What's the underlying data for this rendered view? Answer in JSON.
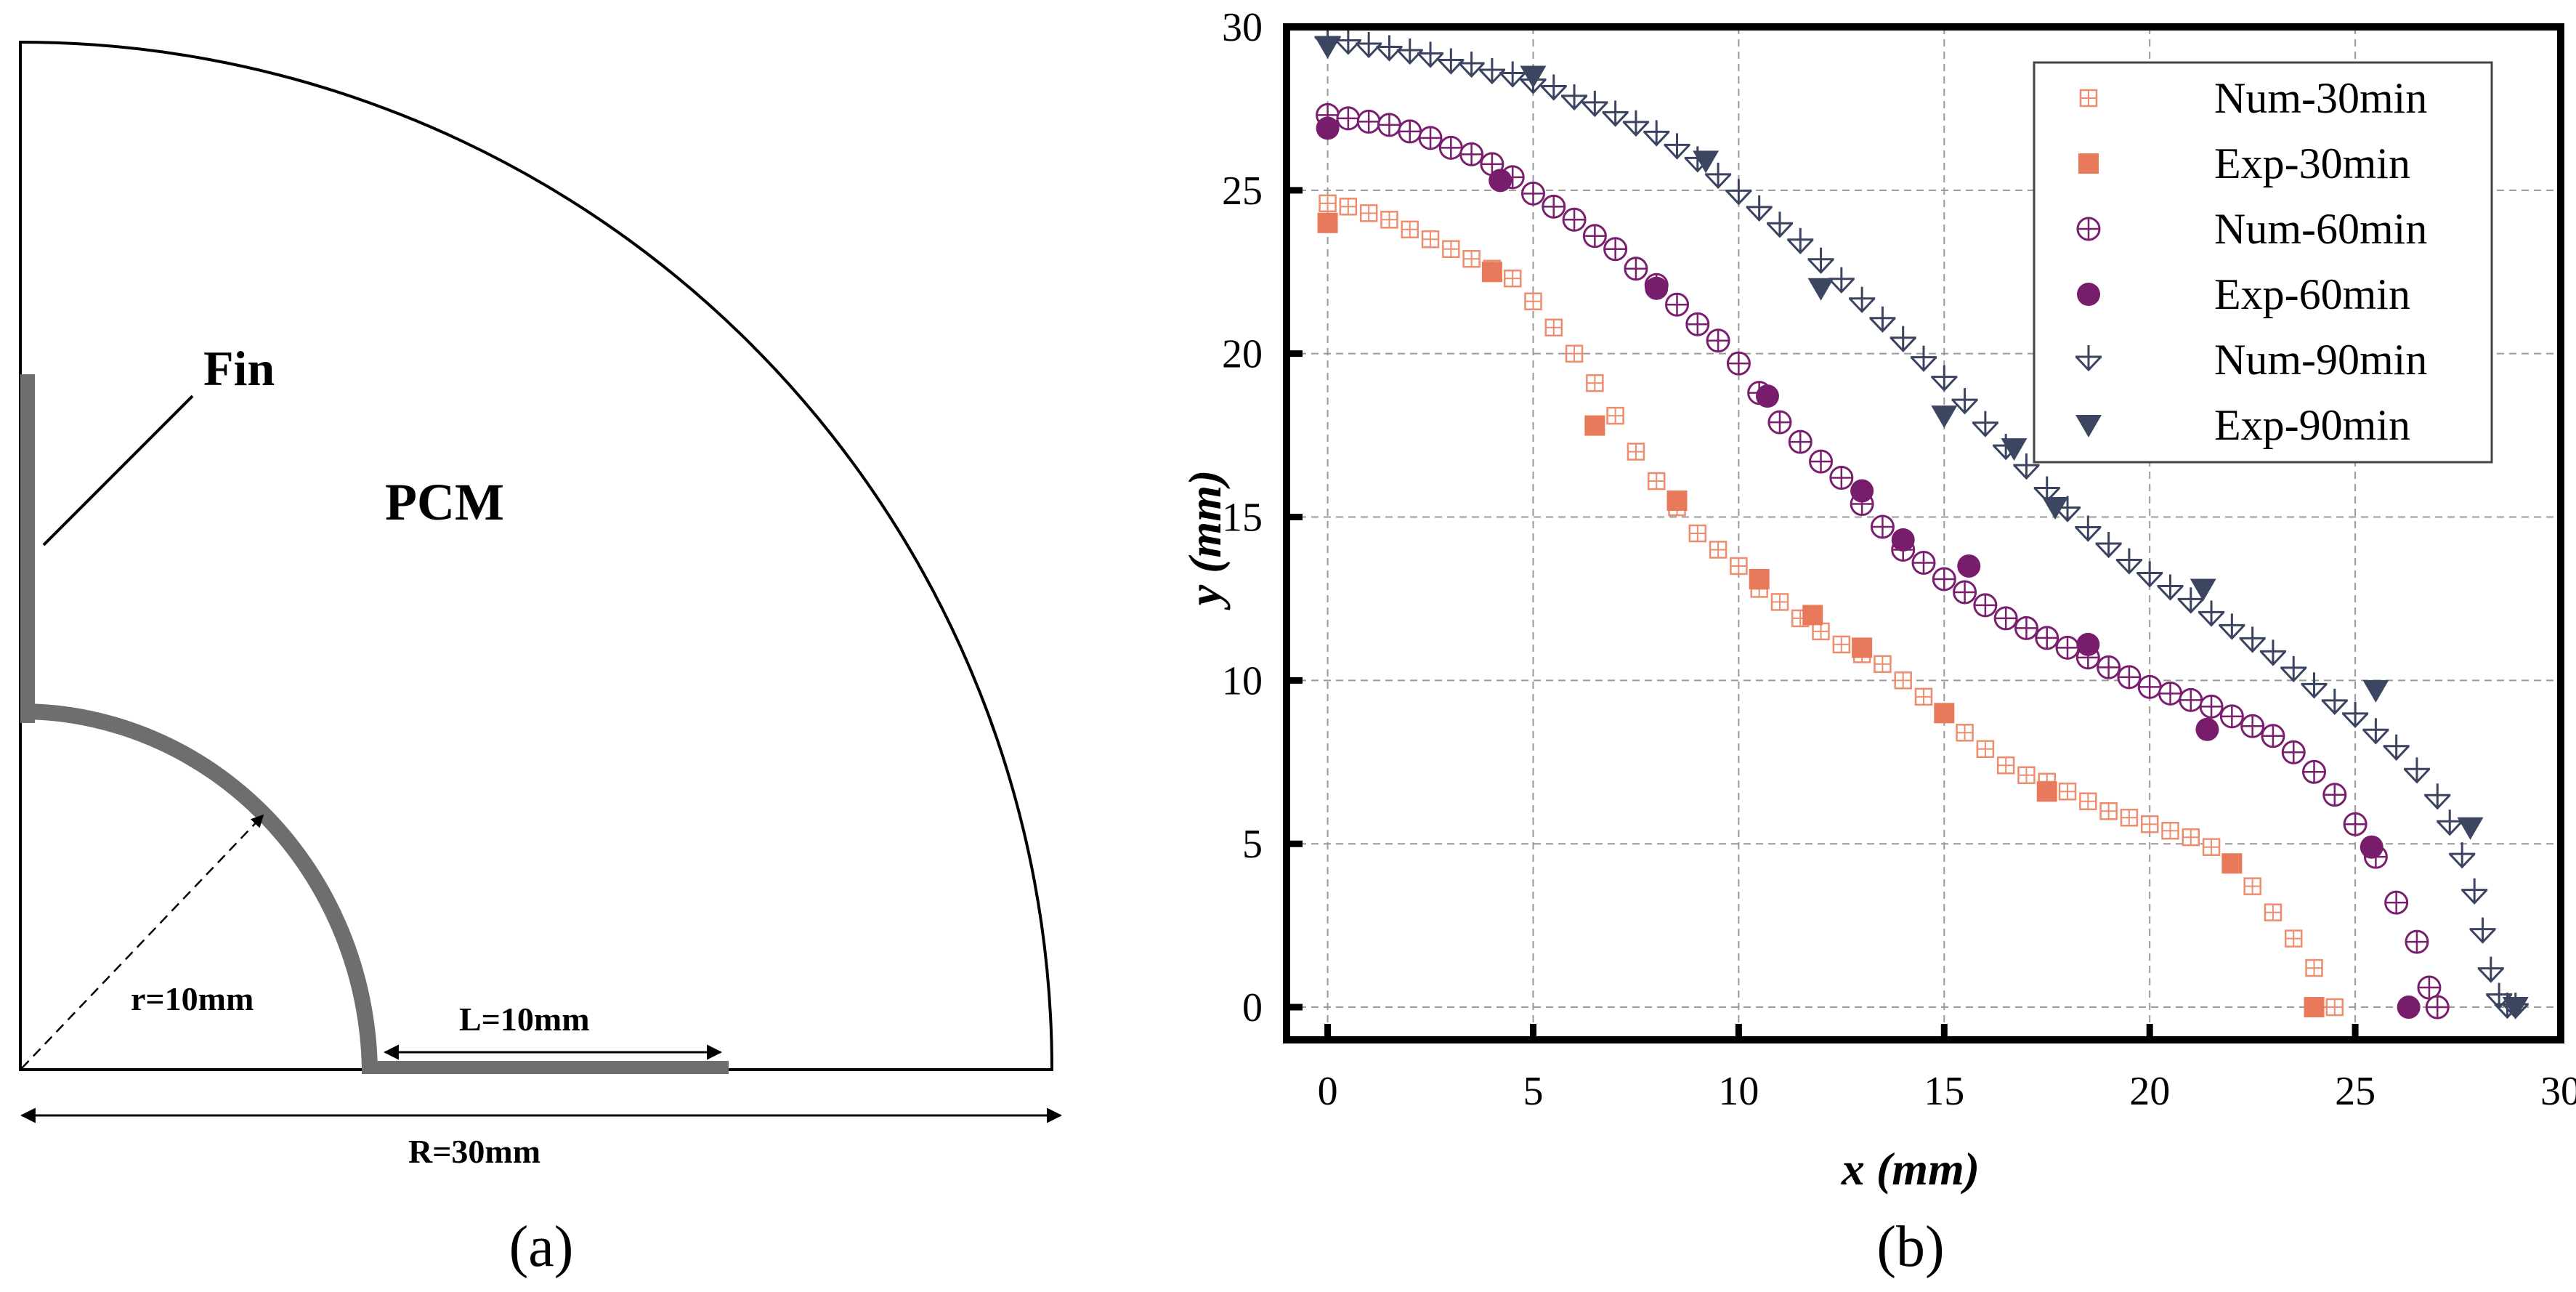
{
  "panel_a": {
    "caption": "(a)",
    "fin_label": "Fin",
    "pcm_label": "PCM",
    "inner_radius_label": "r=10mm",
    "fin_length_label": "L=10mm",
    "outer_radius_label": "R=30mm"
  },
  "panel_b": {
    "caption": "(b)"
  },
  "colors": {
    "num30": "#ee8d6e",
    "exp30": "#e8795a",
    "num60": "#7a1e6e",
    "exp60": "#781c6c",
    "num90": "#3a4460",
    "exp90": "#3c4660",
    "grid": "#999999",
    "fin": "#6e6e6e"
  },
  "chart_data": {
    "type": "scatter",
    "title": "",
    "xlabel": "x (mm)",
    "ylabel": "y (mm)",
    "xlim": [
      -1,
      30
    ],
    "ylim": [
      -1,
      30
    ],
    "x_ticks": [
      "0",
      "5",
      "10",
      "15",
      "20",
      "25",
      "30"
    ],
    "y_ticks": [
      "0",
      "5",
      "10",
      "15",
      "20",
      "25",
      "30"
    ],
    "grid": true,
    "legend_position": "top-right",
    "series": [
      {
        "name": "Num-30min",
        "marker": "square-cross",
        "x": [
          0,
          0.5,
          1,
          1.5,
          2,
          2.5,
          3,
          3.5,
          4,
          4.5,
          5,
          5.5,
          6,
          6.5,
          7,
          7.5,
          8,
          8.5,
          9,
          9.5,
          10,
          10.5,
          11,
          11.5,
          12,
          12.5,
          13,
          13.5,
          14,
          14.5,
          15,
          15.5,
          16,
          16.5,
          17,
          17.5,
          18,
          18.5,
          19,
          19.5,
          20,
          20.5,
          21,
          21.5,
          22,
          22.5,
          23,
          23.5,
          24,
          24.5
        ],
        "y": [
          24.6,
          24.5,
          24.3,
          24.1,
          23.8,
          23.5,
          23.2,
          22.9,
          22.6,
          22.3,
          21.6,
          20.8,
          20,
          19.1,
          18.1,
          17,
          16.1,
          15.3,
          14.5,
          14,
          13.5,
          12.8,
          12.4,
          11.9,
          11.5,
          11.1,
          10.8,
          10.5,
          10,
          9.5,
          9,
          8.4,
          7.9,
          7.4,
          7.1,
          6.9,
          6.6,
          6.3,
          6,
          5.8,
          5.6,
          5.4,
          5.2,
          4.9,
          4.4,
          3.7,
          2.9,
          2.1,
          1.2,
          0
        ]
      },
      {
        "name": "Exp-30min",
        "marker": "filled-square",
        "x": [
          0,
          4,
          6.5,
          8.5,
          10.5,
          11.8,
          13,
          15,
          17.5,
          22,
          24
        ],
        "y": [
          24,
          22.5,
          17.8,
          15.5,
          13.1,
          12,
          11,
          9,
          6.6,
          4.4,
          0
        ]
      },
      {
        "name": "Num-60min",
        "marker": "circle-cross",
        "x": [
          0,
          0.5,
          1,
          1.5,
          2,
          2.5,
          3,
          3.5,
          4,
          4.5,
          5,
          5.5,
          6,
          6.5,
          7,
          7.5,
          8,
          8.5,
          9,
          9.5,
          10,
          10.5,
          11,
          11.5,
          12,
          12.5,
          13,
          13.5,
          14,
          14.5,
          15,
          15.5,
          16,
          16.5,
          17,
          17.5,
          18,
          18.5,
          19,
          19.5,
          20,
          20.5,
          21,
          21.5,
          22,
          22.5,
          23,
          23.5,
          24,
          24.5,
          25,
          25.5,
          26,
          26.5,
          26.8,
          27
        ],
        "y": [
          27.3,
          27.2,
          27.1,
          27,
          26.8,
          26.6,
          26.3,
          26.1,
          25.8,
          25.4,
          24.9,
          24.5,
          24.1,
          23.6,
          23.2,
          22.6,
          22.1,
          21.5,
          20.9,
          20.4,
          19.7,
          18.8,
          17.9,
          17.3,
          16.7,
          16.2,
          15.4,
          14.7,
          14,
          13.6,
          13.1,
          12.7,
          12.3,
          11.9,
          11.6,
          11.3,
          11,
          10.7,
          10.4,
          10.1,
          9.8,
          9.6,
          9.4,
          9.2,
          8.9,
          8.6,
          8.3,
          7.8,
          7.2,
          6.5,
          5.6,
          4.6,
          3.2,
          2,
          0.6,
          0
        ]
      },
      {
        "name": "Exp-60min",
        "marker": "filled-circle",
        "x": [
          0,
          4.2,
          8,
          10.7,
          13,
          14,
          15.6,
          18.5,
          21.4,
          25.4,
          26.3
        ],
        "y": [
          26.9,
          25.3,
          22,
          18.7,
          15.8,
          14.3,
          13.5,
          11.1,
          8.5,
          4.9,
          0
        ]
      },
      {
        "name": "Num-90min",
        "marker": "arrow-down",
        "x": [
          0,
          0.5,
          1,
          1.5,
          2,
          2.5,
          3,
          3.5,
          4,
          4.5,
          5,
          5.5,
          6,
          6.5,
          7,
          7.5,
          8,
          8.5,
          9,
          9.5,
          10,
          10.5,
          11,
          11.5,
          12,
          12.5,
          13,
          13.5,
          14,
          14.5,
          15,
          15.5,
          16,
          16.5,
          17,
          17.5,
          18,
          18.5,
          19,
          19.5,
          20,
          20.5,
          21,
          21.5,
          22,
          22.5,
          23,
          23.5,
          24,
          24.5,
          25,
          25.5,
          26,
          26.5,
          27,
          27.3,
          27.6,
          27.9,
          28.1,
          28.3,
          28.5,
          28.7,
          28.9
        ],
        "y": [
          29.6,
          29.5,
          29.4,
          29.3,
          29.2,
          29.1,
          28.9,
          28.8,
          28.6,
          28.5,
          28.3,
          28.1,
          27.8,
          27.6,
          27.3,
          27,
          26.7,
          26.3,
          25.9,
          25.4,
          24.9,
          24.4,
          23.9,
          23.4,
          22.8,
          22.2,
          21.6,
          21,
          20.4,
          19.8,
          19.2,
          18.5,
          17.8,
          17.1,
          16.5,
          15.8,
          15.2,
          14.6,
          14.1,
          13.6,
          13.2,
          12.8,
          12.4,
          12,
          11.6,
          11.2,
          10.8,
          10.3,
          9.8,
          9.3,
          8.9,
          8.4,
          7.9,
          7.2,
          6.4,
          5.6,
          4.6,
          3.5,
          2.3,
          1.1,
          0.3,
          0,
          0
        ]
      },
      {
        "name": "Exp-90min",
        "marker": "filled-triangle-down",
        "x": [
          0,
          5,
          9.2,
          12,
          15,
          16.7,
          17.7,
          21.3,
          25.5,
          27.8,
          28.9
        ],
        "y": [
          29.4,
          28.5,
          25.9,
          22,
          18.1,
          17.1,
          15.3,
          12.8,
          9.7,
          5.5,
          0
        ]
      }
    ]
  }
}
